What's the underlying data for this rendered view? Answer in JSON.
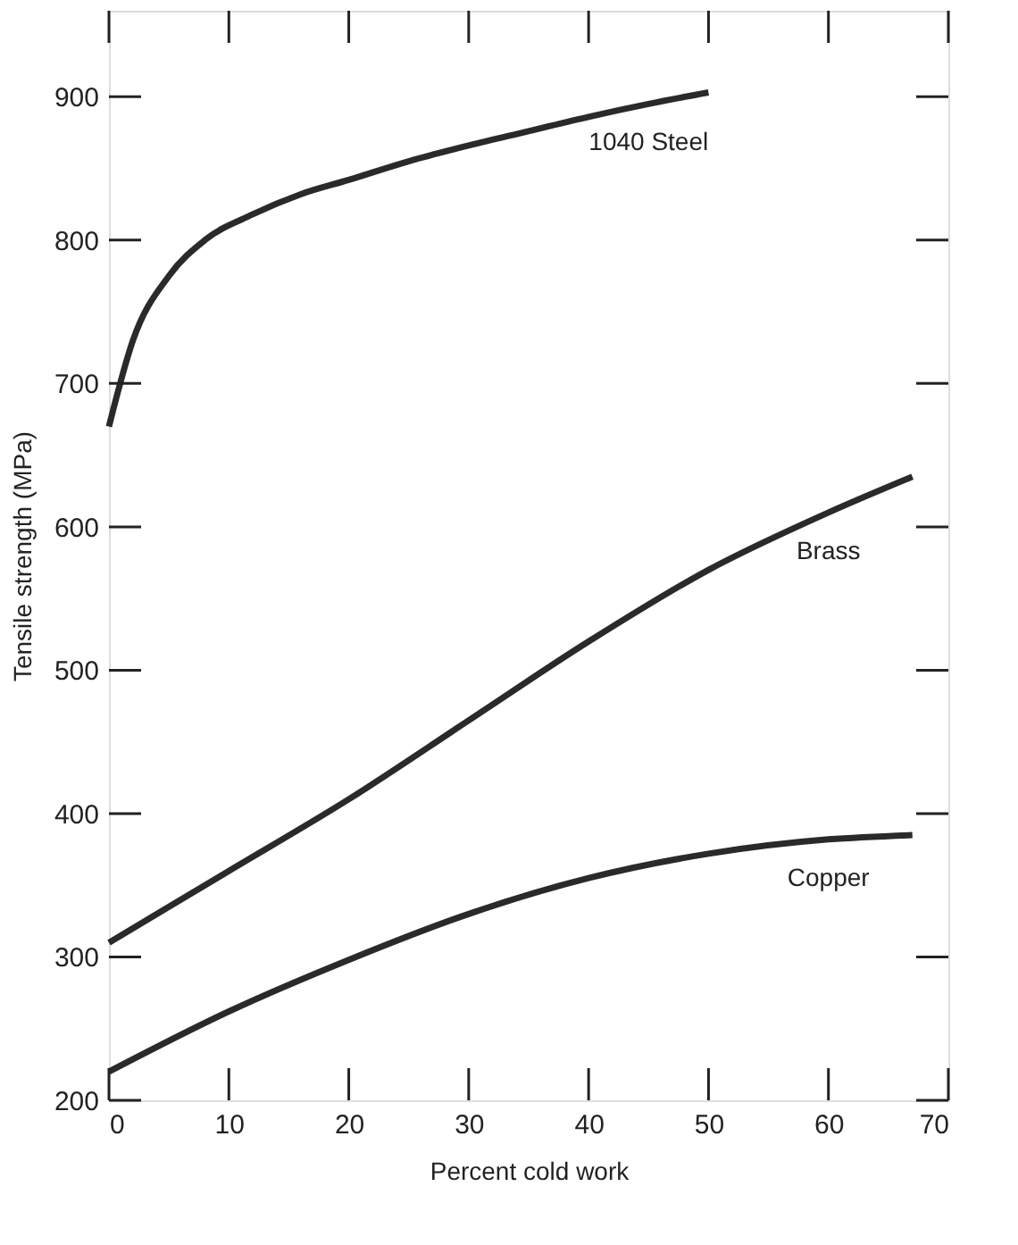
{
  "chart_data": {
    "type": "line",
    "xlabel": "Percent cold work",
    "ylabel": "Tensile strength (MPa)",
    "xlim": [
      0,
      70
    ],
    "xticks": [
      0,
      10,
      20,
      30,
      40,
      50,
      60,
      70
    ],
    "ylim": [
      200,
      960
    ],
    "yticks": [
      200,
      300,
      400,
      500,
      600,
      700,
      800,
      900
    ],
    "grid": false,
    "legend": false,
    "line_style": "solid",
    "marker": "none",
    "series": [
      {
        "name": "1040 Steel",
        "color": "#2a2a2a",
        "x": [
          0,
          2,
          5,
          8,
          12,
          16,
          20,
          25,
          30,
          35,
          40,
          45,
          50
        ],
        "values": [
          670,
          730,
          775,
          800,
          818,
          832,
          842,
          855,
          866,
          876,
          886,
          895,
          903
        ]
      },
      {
        "name": "Brass",
        "color": "#2a2a2a",
        "x": [
          0,
          10,
          20,
          30,
          40,
          50,
          60,
          67
        ],
        "values": [
          310,
          360,
          410,
          465,
          520,
          570,
          610,
          635
        ]
      },
      {
        "name": "Copper",
        "color": "#2a2a2a",
        "x": [
          0,
          10,
          20,
          30,
          40,
          50,
          60,
          67
        ],
        "values": [
          220,
          262,
          298,
          330,
          355,
          372,
          382,
          385
        ]
      }
    ]
  }
}
